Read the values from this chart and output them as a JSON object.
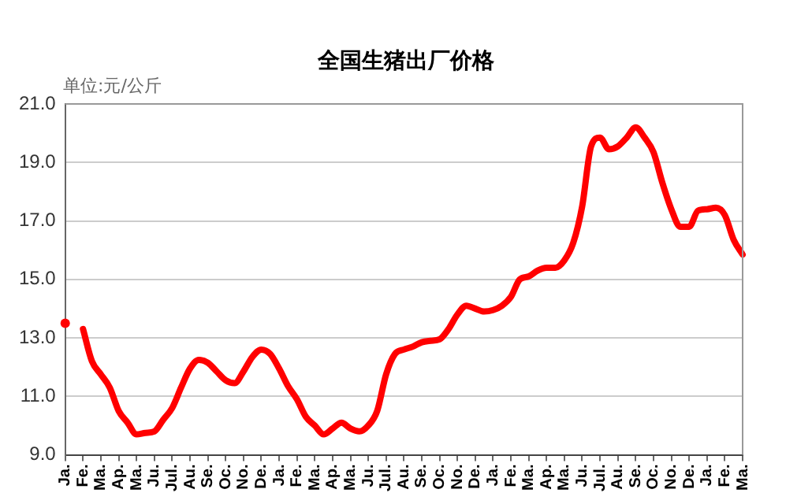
{
  "chart_data": {
    "type": "line",
    "title": "全国生猪出厂价格",
    "ylabel": "单位:元/公斤",
    "categories": [
      "Ja.",
      null,
      "Fe.",
      null,
      "Ma.",
      null,
      "Ap.",
      null,
      "Ma.",
      null,
      "Ju.",
      null,
      "Jul.",
      null,
      "Au.",
      null,
      "Se.",
      null,
      "Oc.",
      null,
      "No.",
      null,
      "De.",
      null,
      "Ja.",
      null,
      "Fe.",
      null,
      "Ma.",
      null,
      "Ap.",
      null,
      "Ma.",
      null,
      "Ju.",
      null,
      "Jul.",
      null,
      "Au.",
      null,
      "Se.",
      null,
      "Oc.",
      null,
      "No.",
      null,
      "De.",
      null,
      "Ja.",
      null,
      "Fe.",
      null,
      "Ma.",
      null,
      "Ap.",
      null,
      "Ma.",
      null,
      "Ju.",
      null,
      "Jul.",
      null,
      "Au.",
      null,
      "Se.",
      null,
      "Oc.",
      null,
      "No.",
      null,
      "De.",
      null,
      "Ja.",
      null,
      "Fe.",
      null,
      "Ma."
    ],
    "series": [
      {
        "color": "#ff0000",
        "values": [
          13.5,
          null,
          13.3,
          12.2,
          11.75,
          11.3,
          10.5,
          10.1,
          9.7,
          9.75,
          9.8,
          10.2,
          10.6,
          11.3,
          11.95,
          12.25,
          12.15,
          11.85,
          11.55,
          11.45,
          11.85,
          12.35,
          12.6,
          12.45,
          11.95,
          11.35,
          10.9,
          10.3,
          10.0,
          9.7,
          9.9,
          10.1,
          9.9,
          9.8,
          10.0,
          10.5,
          11.75,
          12.45,
          12.6,
          12.7,
          12.85,
          12.9,
          12.95,
          13.3,
          13.8,
          14.1,
          14.0,
          13.9,
          13.95,
          14.1,
          14.4,
          15.0,
          15.1,
          15.3,
          15.4,
          15.4,
          15.65,
          16.25,
          17.5,
          19.55,
          19.85,
          19.45,
          19.55,
          19.85,
          20.2,
          19.85,
          19.35,
          18.3,
          17.4,
          16.8,
          16.8,
          17.35,
          17.4,
          17.45,
          17.2,
          16.35,
          15.85
        ]
      }
    ],
    "ylim": [
      9.0,
      21.0
    ],
    "yticks": [
      {
        "value": 9,
        "label": "9.0"
      },
      {
        "value": 11,
        "label": "11.0"
      },
      {
        "value": 13,
        "label": "13.0"
      },
      {
        "value": 15,
        "label": "15.0"
      },
      {
        "value": 17,
        "label": "17.0"
      },
      {
        "value": 19,
        "label": "19.0"
      },
      {
        "value": 21,
        "label": "21.0"
      }
    ],
    "grid": "y",
    "legend": false,
    "marker": "none",
    "line_style": "solid"
  }
}
